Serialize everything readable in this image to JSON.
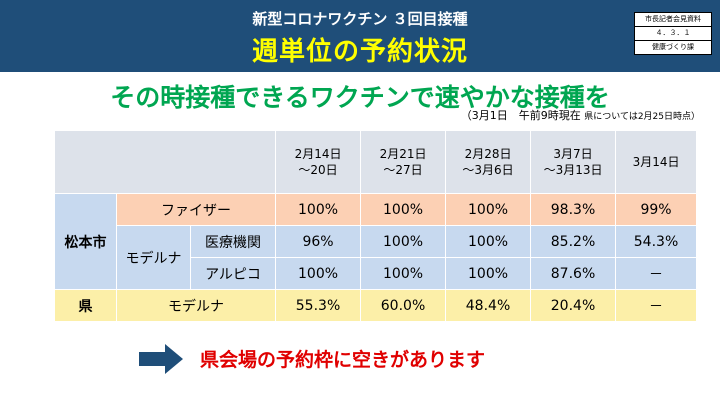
{
  "header": {
    "subtitle": "新型コロナワクチン ３回目接種",
    "title": "週単位の予約状況",
    "doc_ref": [
      "市長記者会見資料",
      "４．３．１",
      "健康づくり課"
    ]
  },
  "tagline": "その時接種できるワクチンで速やかな接種を",
  "note": {
    "main": "（3月1日　午前9時現在",
    "small": "県については2月25日時点）"
  },
  "table": {
    "headers": [
      [
        "2月14日",
        "～20日"
      ],
      [
        "2月21日",
        "～27日"
      ],
      [
        "2月28日",
        "～3月6日"
      ],
      [
        "3月7日",
        "～3月13日"
      ],
      [
        "3月14日",
        ""
      ]
    ],
    "city_label": "松本市",
    "pref_label": "県",
    "moderna_label": "モデルナ",
    "rows": {
      "pfizer": {
        "label": "ファイザー",
        "values": [
          "100%",
          "100%",
          "100%",
          "98.3%",
          "99%"
        ]
      },
      "medical": {
        "label": "医療機関",
        "values": [
          "96%",
          "100%",
          "100%",
          "85.2%",
          "54.3%"
        ]
      },
      "alpico": {
        "label": "アルピコ",
        "values": [
          "100%",
          "100%",
          "100%",
          "87.6%",
          "－"
        ]
      },
      "pref_moderna": {
        "label": "モデルナ",
        "values": [
          "55.3%",
          "60.0%",
          "48.4%",
          "20.4%",
          "－"
        ]
      }
    }
  },
  "callout": "県会場の予約枠に空きがあります",
  "colors": {
    "header_bg": "#1f4e79",
    "title": "#ffff00",
    "tagline": "#00a651",
    "callout": "#e00000",
    "arrow": "#1f4e79"
  }
}
